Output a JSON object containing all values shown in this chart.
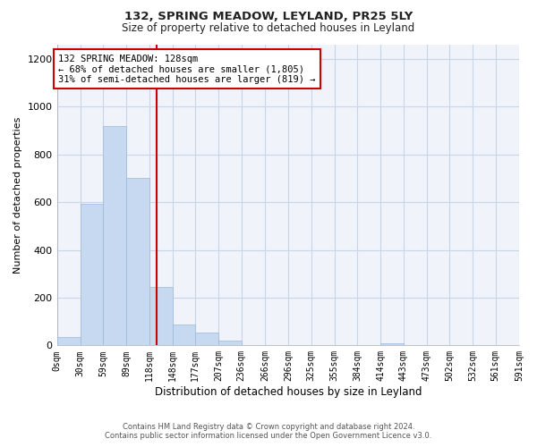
{
  "title": "132, SPRING MEADOW, LEYLAND, PR25 5LY",
  "subtitle": "Size of property relative to detached houses in Leyland",
  "xlabel": "Distribution of detached houses by size in Leyland",
  "ylabel": "Number of detached properties",
  "footer_line1": "Contains HM Land Registry data © Crown copyright and database right 2024.",
  "footer_line2": "Contains public sector information licensed under the Open Government Licence v3.0.",
  "bin_edges": [
    0,
    30,
    59,
    89,
    118,
    148,
    177,
    207,
    236,
    266,
    296,
    325,
    355,
    384,
    414,
    443,
    473,
    502,
    532,
    561,
    591
  ],
  "bar_heights": [
    35,
    595,
    920,
    700,
    245,
    88,
    55,
    20,
    0,
    0,
    0,
    0,
    0,
    0,
    10,
    0,
    0,
    0,
    0,
    0
  ],
  "bar_color": "#c6d9f0",
  "bar_edge_color": "#9ab8d8",
  "property_size": 128,
  "vline_color": "#cc0000",
  "annotation_box_edge": "#cc0000",
  "annotation_line1": "132 SPRING MEADOW: 128sqm",
  "annotation_line2": "← 68% of detached houses are smaller (1,805)",
  "annotation_line3": "31% of semi-detached houses are larger (819) →",
  "ylim": [
    0,
    1260
  ],
  "yticks": [
    0,
    200,
    400,
    600,
    800,
    1000,
    1200
  ],
  "tick_labels": [
    "0sqm",
    "30sqm",
    "59sqm",
    "89sqm",
    "118sqm",
    "148sqm",
    "177sqm",
    "207sqm",
    "236sqm",
    "266sqm",
    "296sqm",
    "325sqm",
    "355sqm",
    "384sqm",
    "414sqm",
    "443sqm",
    "473sqm",
    "502sqm",
    "532sqm",
    "561sqm",
    "591sqm"
  ],
  "background_color": "#ffffff",
  "plot_bg_color": "#f0f4fa",
  "grid_color": "#c8d4e8"
}
